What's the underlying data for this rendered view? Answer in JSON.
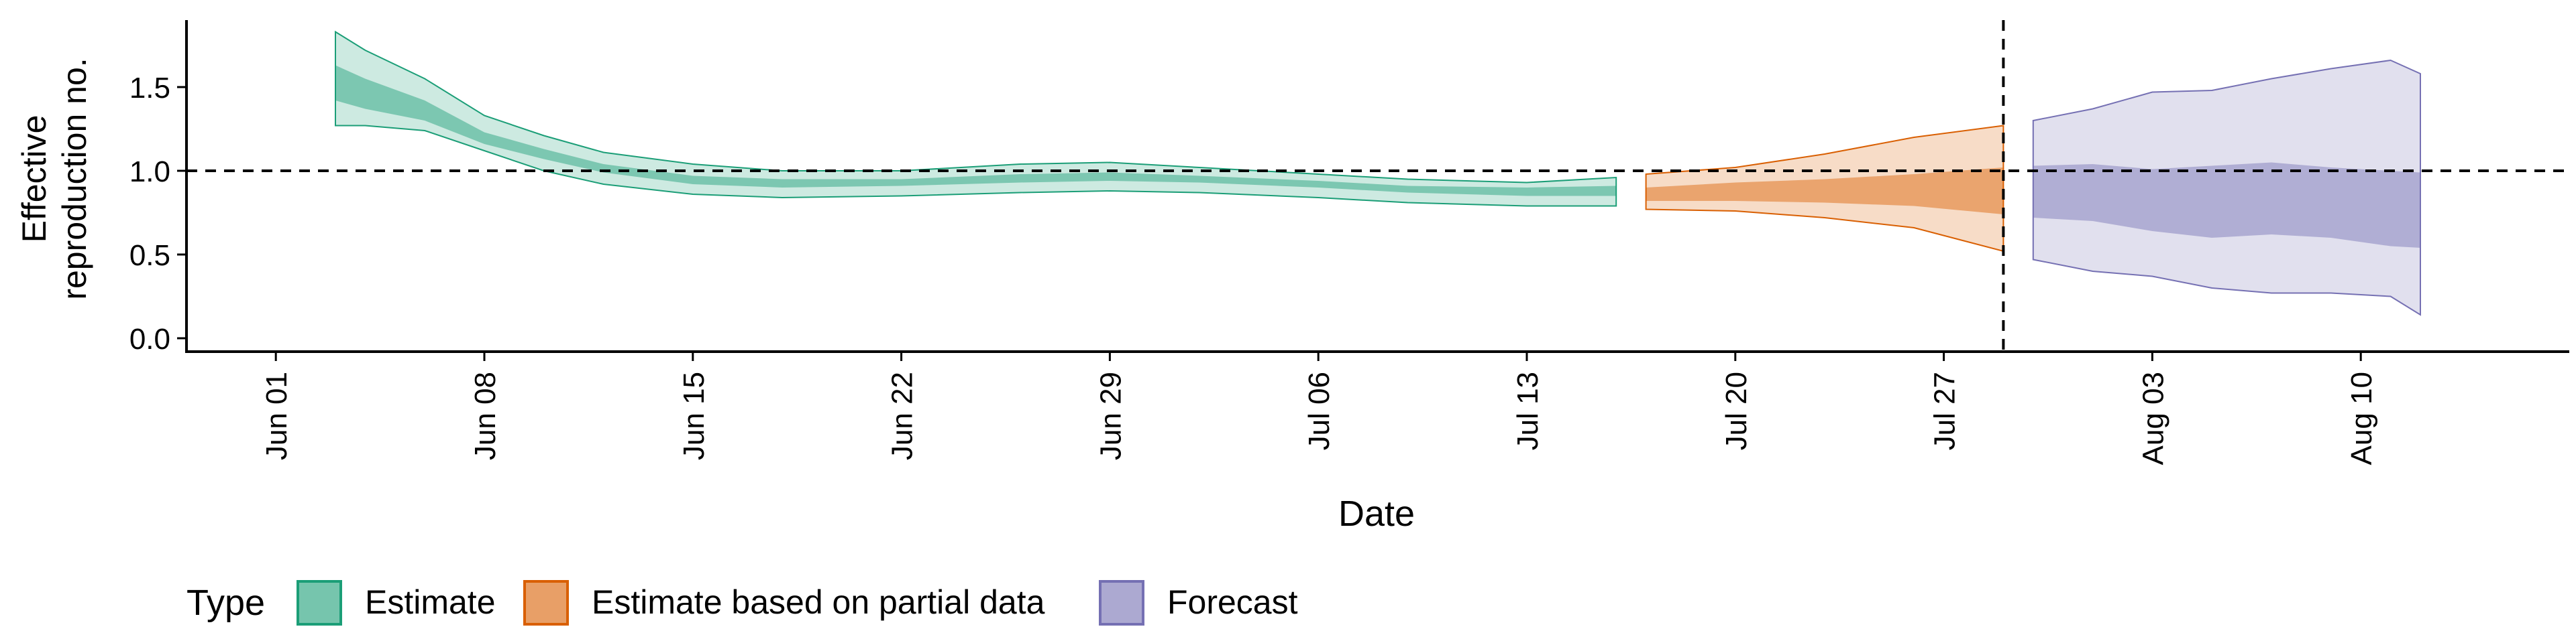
{
  "chart_data": {
    "type": "area",
    "title": "",
    "xlabel": "Date",
    "ylabel": "Effective reproduction no.",
    "ylabel_lines": [
      "Effective",
      "reproduction no."
    ],
    "xlim": [
      "2020-05-29",
      "2020-08-17"
    ],
    "ylim": [
      -0.08,
      1.9
    ],
    "yticks": [
      0.0,
      0.5,
      1.0,
      1.5
    ],
    "ytick_labels": [
      "0.0",
      "0.5",
      "1.0",
      "1.5"
    ],
    "xticks": [
      "2020-06-01",
      "2020-06-08",
      "2020-06-15",
      "2020-06-22",
      "2020-06-29",
      "2020-07-06",
      "2020-07-13",
      "2020-07-20",
      "2020-07-27",
      "2020-08-03",
      "2020-08-10"
    ],
    "xtick_labels": [
      "Jun 01",
      "Jun 08",
      "Jun 15",
      "Jun 22",
      "Jun 29",
      "Jul 06",
      "Jul 13",
      "Jul 20",
      "Jul 27",
      "Aug 03",
      "Aug 10"
    ],
    "reference_line_y": 1.0,
    "reference_line_x": "2020-07-29",
    "grid": false,
    "legend": {
      "title": "Type",
      "position": "bottom-left",
      "items": [
        {
          "label": "Estimate",
          "color": "#1b9e77"
        },
        {
          "label": "Estimate based on partial data",
          "color": "#d95f02"
        },
        {
          "label": "Forecast",
          "color": "#7570b3"
        }
      ]
    },
    "series": [
      {
        "name": "Estimate",
        "color": "#1b9e77",
        "x": [
          "2020-06-03",
          "2020-06-04",
          "2020-06-06",
          "2020-06-08",
          "2020-06-10",
          "2020-06-12",
          "2020-06-15",
          "2020-06-18",
          "2020-06-22",
          "2020-06-26",
          "2020-06-29",
          "2020-07-02",
          "2020-07-06",
          "2020-07-09",
          "2020-07-13",
          "2020-07-16"
        ],
        "lower90": [
          1.27,
          1.27,
          1.24,
          1.12,
          1.0,
          0.92,
          0.86,
          0.84,
          0.85,
          0.87,
          0.88,
          0.87,
          0.84,
          0.81,
          0.79,
          0.79
        ],
        "upper90": [
          1.83,
          1.72,
          1.55,
          1.33,
          1.21,
          1.11,
          1.04,
          1.0,
          1.0,
          1.04,
          1.05,
          1.02,
          0.98,
          0.95,
          0.93,
          0.96
        ],
        "lower50": [
          1.42,
          1.37,
          1.3,
          1.16,
          1.07,
          0.99,
          0.92,
          0.9,
          0.91,
          0.93,
          0.94,
          0.93,
          0.9,
          0.87,
          0.85,
          0.85
        ],
        "upper50": [
          1.63,
          1.55,
          1.42,
          1.23,
          1.13,
          1.04,
          0.97,
          0.95,
          0.95,
          0.98,
          0.99,
          0.97,
          0.94,
          0.91,
          0.9,
          0.91
        ]
      },
      {
        "name": "Estimate based on partial data",
        "color": "#d95f02",
        "x": [
          "2020-07-17",
          "2020-07-20",
          "2020-07-23",
          "2020-07-26",
          "2020-07-29"
        ],
        "lower90": [
          0.77,
          0.76,
          0.72,
          0.66,
          0.52
        ],
        "upper90": [
          0.98,
          1.02,
          1.1,
          1.2,
          1.27
        ],
        "lower50": [
          0.82,
          0.82,
          0.81,
          0.79,
          0.74
        ],
        "upper50": [
          0.9,
          0.93,
          0.95,
          0.98,
          1.02
        ]
      },
      {
        "name": "Forecast",
        "color": "#7570b3",
        "x": [
          "2020-07-30",
          "2020-08-01",
          "2020-08-03",
          "2020-08-05",
          "2020-08-07",
          "2020-08-09",
          "2020-08-11",
          "2020-08-12"
        ],
        "lower90": [
          0.47,
          0.4,
          0.37,
          0.3,
          0.27,
          0.27,
          0.25,
          0.14
        ],
        "upper90": [
          1.3,
          1.37,
          1.47,
          1.48,
          1.55,
          1.61,
          1.66,
          1.58
        ],
        "lower50": [
          0.72,
          0.7,
          0.64,
          0.6,
          0.62,
          0.6,
          0.55,
          0.54
        ],
        "upper50": [
          1.03,
          1.04,
          1.01,
          1.03,
          1.05,
          1.02,
          1.0,
          0.99
        ]
      }
    ]
  }
}
